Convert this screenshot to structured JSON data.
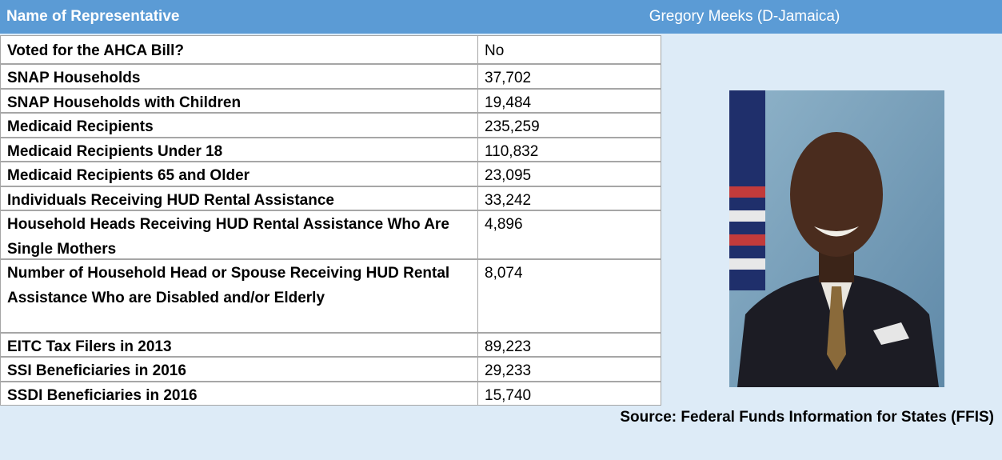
{
  "header": {
    "label": "Name of Representative",
    "name": "Gregory Meeks (D-Jamaica)"
  },
  "table": {
    "rows": [
      [
        "Voted for the AHCA Bill?",
        "No"
      ],
      [
        "SNAP Households",
        "37,702"
      ],
      [
        "SNAP Households with Children",
        "19,484"
      ],
      [
        "Medicaid Recipients",
        "235,259"
      ],
      [
        "Medicaid Recipients Under 18",
        "110,832"
      ],
      [
        "Medicaid Recipients 65 and Older",
        "23,095"
      ],
      [
        "Individuals Receiving HUD Rental Assistance",
        "33,242"
      ],
      [
        "Household Heads Receiving HUD Rental Assistance Who Are Single Mothers",
        "4,896"
      ],
      [
        "Number of Household Head or Spouse Receiving HUD Rental Assistance Who are Disabled and/or Elderly",
        "8,074"
      ],
      [
        "EITC Tax Filers in 2013",
        "89,223"
      ],
      [
        "SSI Beneficiaries in 2016",
        "29,233"
      ],
      [
        "SSDI Beneficiaries in 2016",
        "15,740"
      ]
    ]
  },
  "source": "Source: Federal Funds Information for States (FFIS)"
}
